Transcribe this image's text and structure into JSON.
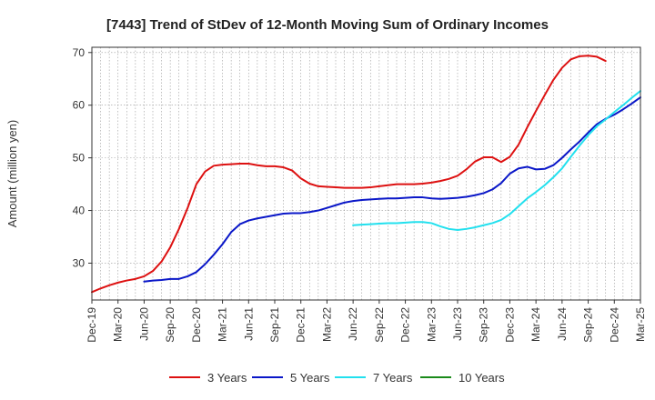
{
  "chart_data": {
    "type": "line",
    "title": "[7443]  Trend of StDev of 12-Month Moving Sum of Ordinary Incomes",
    "xlabel": "",
    "ylabel": "Amount (million yen)",
    "ylim": [
      23,
      71
    ],
    "yticks": [
      30,
      40,
      50,
      60,
      70
    ],
    "xticks": [
      "Dec-19",
      "Mar-20",
      "Jun-20",
      "Sep-20",
      "Dec-20",
      "Mar-21",
      "Jun-21",
      "Sep-21",
      "Dec-21",
      "Mar-22",
      "Jun-22",
      "Sep-22",
      "Dec-22",
      "Mar-23",
      "Jun-23",
      "Sep-23",
      "Dec-23",
      "Mar-24",
      "Jun-24",
      "Sep-24",
      "Dec-24",
      "Mar-25"
    ],
    "grid": true,
    "legend_position": "bottom",
    "series": [
      {
        "name": "3 Years",
        "color": "#dd1111",
        "start": "Dec-19",
        "values": [
          24.5,
          25.2,
          25.8,
          26.3,
          26.7,
          27.0,
          27.5,
          28.5,
          30.3,
          33.0,
          36.5,
          40.5,
          45.0,
          47.4,
          48.5,
          48.7,
          48.8,
          48.9,
          48.9,
          48.6,
          48.4,
          48.4,
          48.2,
          47.6,
          46.1,
          45.1,
          44.6,
          44.5,
          44.4,
          44.3,
          44.3,
          44.3,
          44.4,
          44.6,
          44.8,
          45.0,
          45.0,
          45.0,
          45.1,
          45.3,
          45.6,
          46.0,
          46.6,
          47.8,
          49.3,
          50.1,
          50.1,
          49.2,
          50.2,
          52.5,
          55.8,
          58.9,
          61.9,
          64.8,
          67.1,
          68.7,
          69.3,
          69.4,
          69.2,
          68.4
        ]
      },
      {
        "name": "5 Years",
        "color": "#0a17c8",
        "start": "Jun-20",
        "values": [
          26.5,
          26.7,
          26.8,
          27.0,
          27.0,
          27.5,
          28.3,
          29.8,
          31.6,
          33.6,
          35.9,
          37.4,
          38.1,
          38.5,
          38.8,
          39.1,
          39.4,
          39.5,
          39.5,
          39.7,
          40.0,
          40.5,
          41.0,
          41.5,
          41.8,
          42.0,
          42.1,
          42.2,
          42.3,
          42.3,
          42.4,
          42.5,
          42.5,
          42.3,
          42.2,
          42.3,
          42.4,
          42.6,
          42.9,
          43.3,
          44.0,
          45.2,
          47.0,
          48.0,
          48.3,
          47.8,
          47.9,
          48.6,
          50.0,
          51.6,
          53.1,
          54.8,
          56.4,
          57.4,
          58.2,
          59.2,
          60.3,
          61.5
        ]
      },
      {
        "name": "7 Years",
        "color": "#22e0ee",
        "start": "Jun-22",
        "values": [
          37.2,
          37.3,
          37.4,
          37.5,
          37.6,
          37.6,
          37.7,
          37.8,
          37.8,
          37.6,
          37.0,
          36.5,
          36.3,
          36.5,
          36.8,
          37.2,
          37.6,
          38.2,
          39.3,
          40.8,
          42.3,
          43.5,
          44.8,
          46.3,
          48.0,
          50.2,
          52.3,
          54.3,
          56.0,
          57.3,
          58.7,
          60.0,
          61.4,
          62.7
        ]
      },
      {
        "name": "10 Years",
        "color": "#1a8a1a",
        "start": "Dec-19",
        "values": []
      }
    ]
  }
}
